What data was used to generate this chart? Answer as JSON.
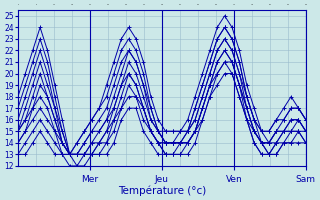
{
  "xlabel": "Température (°c)",
  "background_color": "#cce8e8",
  "grid_color": "#99bbcc",
  "line_color": "#0000aa",
  "ylim": [
    12,
    25.5
  ],
  "xlim": [
    0,
    96
  ],
  "yticks": [
    12,
    13,
    14,
    15,
    16,
    17,
    18,
    19,
    20,
    21,
    22,
    23,
    24,
    25
  ],
  "day_ticks": [
    24,
    48,
    72,
    96
  ],
  "day_labels": [
    "Mer",
    "Jeu",
    "Ven",
    "Sam"
  ],
  "num_hours": 96,
  "series": [
    [
      18,
      20,
      22,
      24,
      22,
      19,
      16,
      13,
      14,
      15,
      16,
      17,
      19,
      21,
      23,
      24,
      23,
      21,
      18,
      16,
      15,
      15,
      15,
      16,
      18,
      20,
      22,
      24,
      25,
      24,
      22,
      19,
      17,
      15,
      15,
      16,
      17,
      18,
      17,
      16
    ],
    [
      17,
      19,
      21,
      23,
      21,
      18,
      15,
      13,
      14,
      15,
      16,
      17,
      18,
      20,
      22,
      23,
      22,
      20,
      17,
      15,
      15,
      15,
      15,
      15,
      17,
      19,
      21,
      23,
      24,
      23,
      21,
      18,
      16,
      15,
      15,
      16,
      16,
      17,
      17,
      16
    ],
    [
      16,
      18,
      20,
      22,
      20,
      17,
      15,
      13,
      13,
      14,
      15,
      16,
      17,
      19,
      21,
      22,
      21,
      19,
      17,
      15,
      14,
      14,
      15,
      15,
      17,
      19,
      21,
      23,
      24,
      23,
      21,
      18,
      16,
      15,
      14,
      15,
      16,
      17,
      17,
      16
    ],
    [
      15,
      17,
      19,
      21,
      19,
      17,
      14,
      13,
      13,
      14,
      15,
      15,
      16,
      18,
      20,
      22,
      21,
      19,
      16,
      15,
      14,
      14,
      14,
      15,
      16,
      18,
      20,
      22,
      23,
      22,
      20,
      18,
      16,
      14,
      14,
      15,
      15,
      16,
      16,
      15
    ],
    [
      15,
      16,
      18,
      20,
      18,
      16,
      14,
      13,
      13,
      13,
      14,
      15,
      16,
      17,
      19,
      21,
      20,
      18,
      16,
      15,
      14,
      14,
      14,
      15,
      16,
      18,
      20,
      22,
      23,
      22,
      20,
      17,
      15,
      14,
      14,
      15,
      15,
      16,
      16,
      15
    ],
    [
      15,
      16,
      17,
      19,
      18,
      16,
      14,
      13,
      13,
      13,
      14,
      14,
      15,
      17,
      19,
      20,
      19,
      17,
      15,
      14,
      14,
      14,
      14,
      14,
      15,
      17,
      19,
      21,
      22,
      21,
      19,
      17,
      15,
      14,
      14,
      14,
      15,
      15,
      16,
      15
    ],
    [
      14,
      15,
      17,
      18,
      17,
      15,
      14,
      13,
      13,
      13,
      13,
      14,
      15,
      16,
      18,
      20,
      19,
      17,
      15,
      14,
      14,
      14,
      14,
      14,
      15,
      17,
      19,
      21,
      22,
      21,
      19,
      17,
      15,
      14,
      13,
      14,
      15,
      15,
      15,
      15
    ],
    [
      14,
      15,
      16,
      17,
      16,
      15,
      13,
      13,
      13,
      13,
      13,
      14,
      14,
      16,
      17,
      19,
      18,
      17,
      15,
      14,
      13,
      13,
      14,
      14,
      15,
      17,
      19,
      20,
      21,
      21,
      19,
      16,
      15,
      14,
      13,
      14,
      14,
      15,
      15,
      14
    ],
    [
      13,
      14,
      15,
      16,
      15,
      14,
      13,
      13,
      12,
      13,
      13,
      13,
      14,
      15,
      17,
      18,
      18,
      16,
      15,
      14,
      13,
      13,
      13,
      14,
      15,
      16,
      18,
      20,
      21,
      20,
      18,
      16,
      14,
      13,
      13,
      13,
      14,
      14,
      15,
      14
    ],
    [
      13,
      13,
      14,
      15,
      14,
      13,
      13,
      12,
      12,
      12,
      13,
      13,
      13,
      14,
      16,
      17,
      17,
      15,
      14,
      13,
      13,
      13,
      13,
      13,
      14,
      16,
      18,
      19,
      20,
      20,
      18,
      16,
      14,
      13,
      13,
      13,
      14,
      14,
      14,
      14
    ]
  ],
  "x_step": 2.4
}
